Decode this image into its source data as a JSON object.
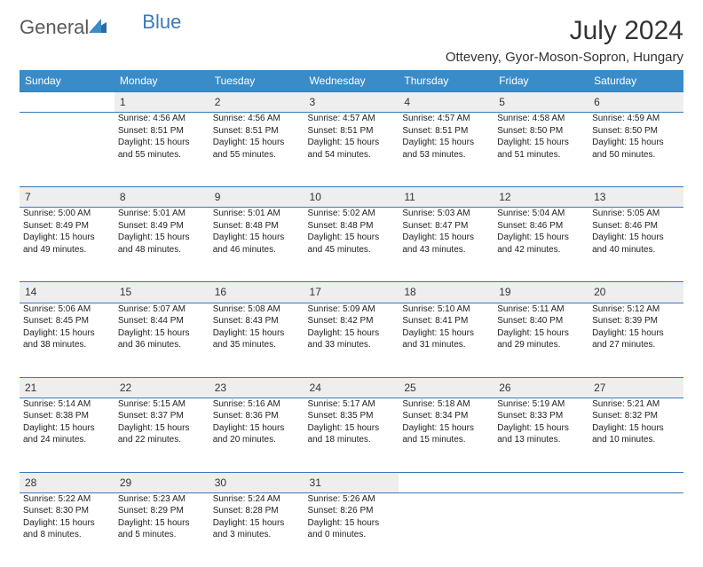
{
  "logo": {
    "text1": "General",
    "text2": "Blue"
  },
  "title": "July 2024",
  "location": "Otteveny, Gyor-Moson-Sopron, Hungary",
  "colors": {
    "header_bg": "#3a8cc8",
    "header_text": "#ffffff",
    "daynum_bg": "#eeeeee",
    "row_border": "#3a7ab8",
    "logo_gray": "#5a5a5a",
    "logo_blue": "#3a7ab8",
    "body_text": "#222222",
    "background": "#ffffff"
  },
  "day_names": [
    "Sunday",
    "Monday",
    "Tuesday",
    "Wednesday",
    "Thursday",
    "Friday",
    "Saturday"
  ],
  "weeks": [
    {
      "nums": [
        "",
        "1",
        "2",
        "3",
        "4",
        "5",
        "6"
      ],
      "cells": [
        null,
        {
          "sunrise": "Sunrise: 4:56 AM",
          "sunset": "Sunset: 8:51 PM",
          "daylight1": "Daylight: 15 hours",
          "daylight2": "and 55 minutes."
        },
        {
          "sunrise": "Sunrise: 4:56 AM",
          "sunset": "Sunset: 8:51 PM",
          "daylight1": "Daylight: 15 hours",
          "daylight2": "and 55 minutes."
        },
        {
          "sunrise": "Sunrise: 4:57 AM",
          "sunset": "Sunset: 8:51 PM",
          "daylight1": "Daylight: 15 hours",
          "daylight2": "and 54 minutes."
        },
        {
          "sunrise": "Sunrise: 4:57 AM",
          "sunset": "Sunset: 8:51 PM",
          "daylight1": "Daylight: 15 hours",
          "daylight2": "and 53 minutes."
        },
        {
          "sunrise": "Sunrise: 4:58 AM",
          "sunset": "Sunset: 8:50 PM",
          "daylight1": "Daylight: 15 hours",
          "daylight2": "and 51 minutes."
        },
        {
          "sunrise": "Sunrise: 4:59 AM",
          "sunset": "Sunset: 8:50 PM",
          "daylight1": "Daylight: 15 hours",
          "daylight2": "and 50 minutes."
        }
      ]
    },
    {
      "nums": [
        "7",
        "8",
        "9",
        "10",
        "11",
        "12",
        "13"
      ],
      "cells": [
        {
          "sunrise": "Sunrise: 5:00 AM",
          "sunset": "Sunset: 8:49 PM",
          "daylight1": "Daylight: 15 hours",
          "daylight2": "and 49 minutes."
        },
        {
          "sunrise": "Sunrise: 5:01 AM",
          "sunset": "Sunset: 8:49 PM",
          "daylight1": "Daylight: 15 hours",
          "daylight2": "and 48 minutes."
        },
        {
          "sunrise": "Sunrise: 5:01 AM",
          "sunset": "Sunset: 8:48 PM",
          "daylight1": "Daylight: 15 hours",
          "daylight2": "and 46 minutes."
        },
        {
          "sunrise": "Sunrise: 5:02 AM",
          "sunset": "Sunset: 8:48 PM",
          "daylight1": "Daylight: 15 hours",
          "daylight2": "and 45 minutes."
        },
        {
          "sunrise": "Sunrise: 5:03 AM",
          "sunset": "Sunset: 8:47 PM",
          "daylight1": "Daylight: 15 hours",
          "daylight2": "and 43 minutes."
        },
        {
          "sunrise": "Sunrise: 5:04 AM",
          "sunset": "Sunset: 8:46 PM",
          "daylight1": "Daylight: 15 hours",
          "daylight2": "and 42 minutes."
        },
        {
          "sunrise": "Sunrise: 5:05 AM",
          "sunset": "Sunset: 8:46 PM",
          "daylight1": "Daylight: 15 hours",
          "daylight2": "and 40 minutes."
        }
      ]
    },
    {
      "nums": [
        "14",
        "15",
        "16",
        "17",
        "18",
        "19",
        "20"
      ],
      "cells": [
        {
          "sunrise": "Sunrise: 5:06 AM",
          "sunset": "Sunset: 8:45 PM",
          "daylight1": "Daylight: 15 hours",
          "daylight2": "and 38 minutes."
        },
        {
          "sunrise": "Sunrise: 5:07 AM",
          "sunset": "Sunset: 8:44 PM",
          "daylight1": "Daylight: 15 hours",
          "daylight2": "and 36 minutes."
        },
        {
          "sunrise": "Sunrise: 5:08 AM",
          "sunset": "Sunset: 8:43 PM",
          "daylight1": "Daylight: 15 hours",
          "daylight2": "and 35 minutes."
        },
        {
          "sunrise": "Sunrise: 5:09 AM",
          "sunset": "Sunset: 8:42 PM",
          "daylight1": "Daylight: 15 hours",
          "daylight2": "and 33 minutes."
        },
        {
          "sunrise": "Sunrise: 5:10 AM",
          "sunset": "Sunset: 8:41 PM",
          "daylight1": "Daylight: 15 hours",
          "daylight2": "and 31 minutes."
        },
        {
          "sunrise": "Sunrise: 5:11 AM",
          "sunset": "Sunset: 8:40 PM",
          "daylight1": "Daylight: 15 hours",
          "daylight2": "and 29 minutes."
        },
        {
          "sunrise": "Sunrise: 5:12 AM",
          "sunset": "Sunset: 8:39 PM",
          "daylight1": "Daylight: 15 hours",
          "daylight2": "and 27 minutes."
        }
      ]
    },
    {
      "nums": [
        "21",
        "22",
        "23",
        "24",
        "25",
        "26",
        "27"
      ],
      "cells": [
        {
          "sunrise": "Sunrise: 5:14 AM",
          "sunset": "Sunset: 8:38 PM",
          "daylight1": "Daylight: 15 hours",
          "daylight2": "and 24 minutes."
        },
        {
          "sunrise": "Sunrise: 5:15 AM",
          "sunset": "Sunset: 8:37 PM",
          "daylight1": "Daylight: 15 hours",
          "daylight2": "and 22 minutes."
        },
        {
          "sunrise": "Sunrise: 5:16 AM",
          "sunset": "Sunset: 8:36 PM",
          "daylight1": "Daylight: 15 hours",
          "daylight2": "and 20 minutes."
        },
        {
          "sunrise": "Sunrise: 5:17 AM",
          "sunset": "Sunset: 8:35 PM",
          "daylight1": "Daylight: 15 hours",
          "daylight2": "and 18 minutes."
        },
        {
          "sunrise": "Sunrise: 5:18 AM",
          "sunset": "Sunset: 8:34 PM",
          "daylight1": "Daylight: 15 hours",
          "daylight2": "and 15 minutes."
        },
        {
          "sunrise": "Sunrise: 5:19 AM",
          "sunset": "Sunset: 8:33 PM",
          "daylight1": "Daylight: 15 hours",
          "daylight2": "and 13 minutes."
        },
        {
          "sunrise": "Sunrise: 5:21 AM",
          "sunset": "Sunset: 8:32 PM",
          "daylight1": "Daylight: 15 hours",
          "daylight2": "and 10 minutes."
        }
      ]
    },
    {
      "nums": [
        "28",
        "29",
        "30",
        "31",
        "",
        "",
        ""
      ],
      "cells": [
        {
          "sunrise": "Sunrise: 5:22 AM",
          "sunset": "Sunset: 8:30 PM",
          "daylight1": "Daylight: 15 hours",
          "daylight2": "and 8 minutes."
        },
        {
          "sunrise": "Sunrise: 5:23 AM",
          "sunset": "Sunset: 8:29 PM",
          "daylight1": "Daylight: 15 hours",
          "daylight2": "and 5 minutes."
        },
        {
          "sunrise": "Sunrise: 5:24 AM",
          "sunset": "Sunset: 8:28 PM",
          "daylight1": "Daylight: 15 hours",
          "daylight2": "and 3 minutes."
        },
        {
          "sunrise": "Sunrise: 5:26 AM",
          "sunset": "Sunset: 8:26 PM",
          "daylight1": "Daylight: 15 hours",
          "daylight2": "and 0 minutes."
        },
        null,
        null,
        null
      ]
    }
  ]
}
